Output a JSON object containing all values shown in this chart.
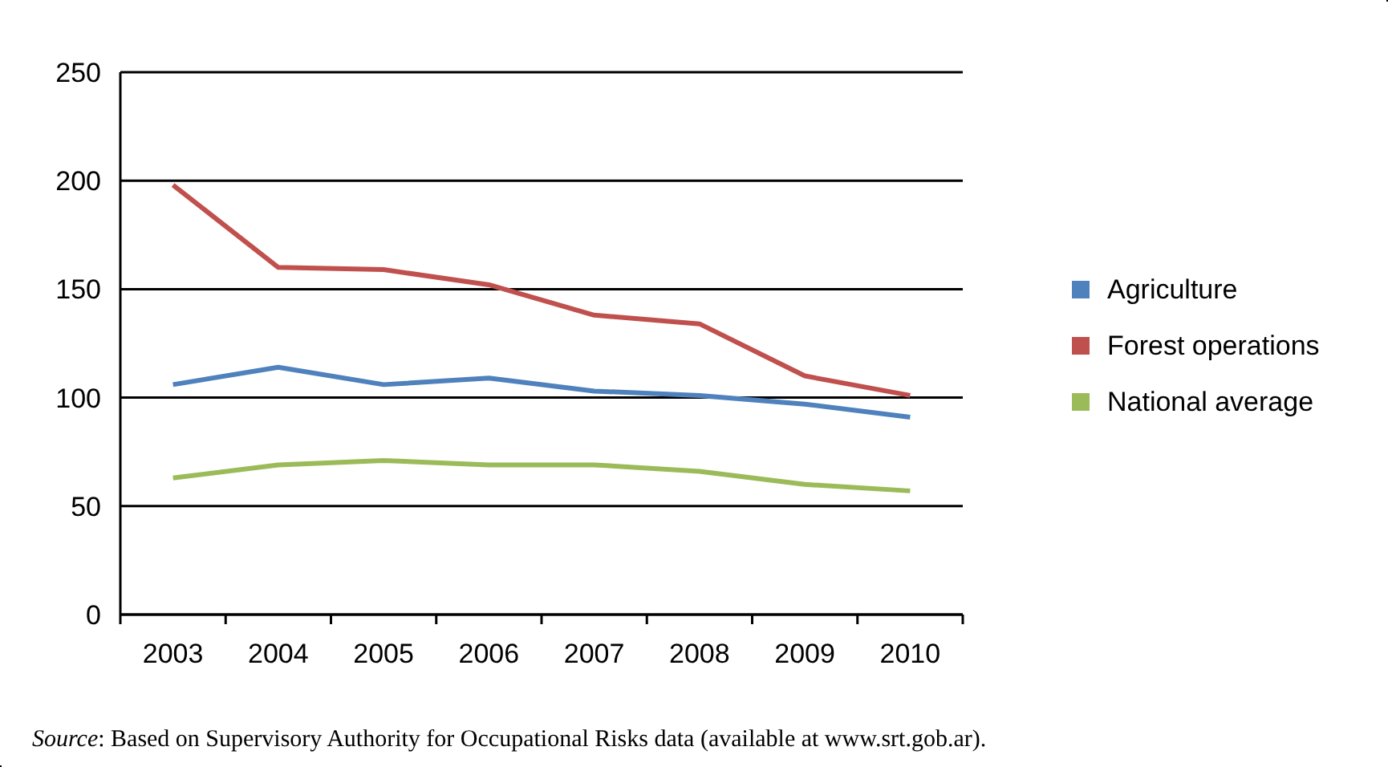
{
  "chart_data": {
    "type": "line",
    "categories": [
      "2003",
      "2004",
      "2005",
      "2006",
      "2007",
      "2008",
      "2009",
      "2010"
    ],
    "series": [
      {
        "name": "Agriculture",
        "color": "#4f81bd",
        "values": [
          106,
          114,
          106,
          109,
          103,
          101,
          97,
          91
        ]
      },
      {
        "name": "Forest operations",
        "color": "#c0504d",
        "values": [
          198,
          160,
          159,
          152,
          138,
          134,
          110,
          101
        ]
      },
      {
        "name": "National average",
        "color": "#9bbb59",
        "values": [
          63,
          69,
          71,
          69,
          69,
          66,
          60,
          57
        ]
      }
    ],
    "ylim": [
      0,
      250
    ],
    "yticks": [
      0,
      50,
      100,
      150,
      200,
      250
    ],
    "grid": "y",
    "legend": "right",
    "marker": "none",
    "line_style": "solid",
    "annotations": [
      "Source: Based on Supervisory Authority for Occupational Risks data (available at www.srt.gob.ar)."
    ]
  }
}
